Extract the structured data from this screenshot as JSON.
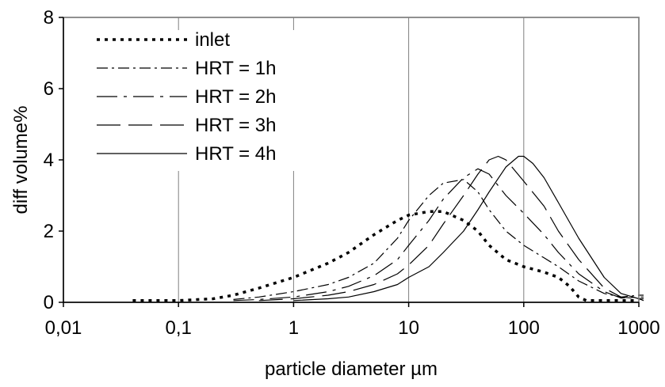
{
  "chart_data": {
    "type": "line",
    "xlabel": "particle diameter µm",
    "ylabel": "diff volume%",
    "xscale": "log",
    "xlim": [
      0.01,
      1000
    ],
    "ylim": [
      0,
      8
    ],
    "x_ticks": [
      0.01,
      0.1,
      1,
      10,
      100,
      1000
    ],
    "x_tick_labels": [
      "0,01",
      "0,1",
      "1",
      "10",
      "100",
      "1000"
    ],
    "y_ticks": [
      0,
      2,
      4,
      6,
      8
    ],
    "y_tick_labels": [
      "0",
      "2",
      "4",
      "6",
      "8"
    ],
    "grid": "vertical",
    "legend_position": "top-left",
    "series": [
      {
        "name": "inlet",
        "style": "dotted",
        "points": [
          [
            0.04,
            0.05
          ],
          [
            0.1,
            0.05
          ],
          [
            0.2,
            0.1
          ],
          [
            0.3,
            0.2
          ],
          [
            0.5,
            0.4
          ],
          [
            1,
            0.7
          ],
          [
            2,
            1.1
          ],
          [
            3,
            1.4
          ],
          [
            5,
            1.9
          ],
          [
            8,
            2.3
          ],
          [
            10,
            2.45
          ],
          [
            15,
            2.55
          ],
          [
            20,
            2.55
          ],
          [
            30,
            2.3
          ],
          [
            40,
            2.0
          ],
          [
            50,
            1.6
          ],
          [
            70,
            1.2
          ],
          [
            100,
            1.0
          ],
          [
            150,
            0.85
          ],
          [
            200,
            0.7
          ],
          [
            250,
            0.45
          ],
          [
            300,
            0.15
          ],
          [
            350,
            0.05
          ],
          [
            1000,
            0.05
          ]
        ]
      },
      {
        "name": "HRT = 1h",
        "style": "dash-dot",
        "points": [
          [
            0.3,
            0.08
          ],
          [
            0.5,
            0.15
          ],
          [
            1,
            0.3
          ],
          [
            2,
            0.5
          ],
          [
            3,
            0.7
          ],
          [
            5,
            1.1
          ],
          [
            8,
            1.8
          ],
          [
            10,
            2.3
          ],
          [
            15,
            3.0
          ],
          [
            20,
            3.35
          ],
          [
            30,
            3.45
          ],
          [
            40,
            3.1
          ],
          [
            50,
            2.6
          ],
          [
            70,
            2.0
          ],
          [
            100,
            1.6
          ],
          [
            150,
            1.25
          ],
          [
            200,
            1.0
          ],
          [
            300,
            0.6
          ],
          [
            500,
            0.25
          ],
          [
            700,
            0.15
          ],
          [
            1000,
            0.2
          ],
          [
            1100,
            0.2
          ]
        ]
      },
      {
        "name": "HRT = 2h",
        "style": "long-dash-dot",
        "points": [
          [
            0.3,
            0.05
          ],
          [
            0.5,
            0.08
          ],
          [
            1,
            0.15
          ],
          [
            2,
            0.3
          ],
          [
            3,
            0.45
          ],
          [
            5,
            0.75
          ],
          [
            8,
            1.2
          ],
          [
            10,
            1.6
          ],
          [
            15,
            2.3
          ],
          [
            20,
            2.9
          ],
          [
            30,
            3.5
          ],
          [
            40,
            3.75
          ],
          [
            50,
            3.6
          ],
          [
            70,
            3.0
          ],
          [
            100,
            2.5
          ],
          [
            150,
            1.9
          ],
          [
            200,
            1.4
          ],
          [
            300,
            0.8
          ],
          [
            500,
            0.3
          ],
          [
            700,
            0.12
          ],
          [
            1000,
            0.15
          ],
          [
            1100,
            0.15
          ]
        ]
      },
      {
        "name": "HRT = 3h",
        "style": "long-dash",
        "points": [
          [
            0.5,
            0.05
          ],
          [
            1,
            0.1
          ],
          [
            2,
            0.2
          ],
          [
            3,
            0.3
          ],
          [
            5,
            0.5
          ],
          [
            8,
            0.8
          ],
          [
            10,
            1.05
          ],
          [
            15,
            1.6
          ],
          [
            20,
            2.2
          ],
          [
            30,
            3.0
          ],
          [
            40,
            3.6
          ],
          [
            50,
            4.0
          ],
          [
            60,
            4.1
          ],
          [
            70,
            4.0
          ],
          [
            100,
            3.4
          ],
          [
            150,
            2.7
          ],
          [
            200,
            2.0
          ],
          [
            300,
            1.2
          ],
          [
            500,
            0.4
          ],
          [
            700,
            0.15
          ],
          [
            1000,
            0.1
          ],
          [
            1100,
            0.1
          ]
        ]
      },
      {
        "name": "HRT = 4h",
        "style": "solid",
        "points": [
          [
            1,
            0.05
          ],
          [
            2,
            0.1
          ],
          [
            3,
            0.15
          ],
          [
            5,
            0.3
          ],
          [
            8,
            0.5
          ],
          [
            10,
            0.7
          ],
          [
            15,
            1.0
          ],
          [
            20,
            1.4
          ],
          [
            30,
            2.0
          ],
          [
            40,
            2.6
          ],
          [
            50,
            3.1
          ],
          [
            70,
            3.8
          ],
          [
            90,
            4.1
          ],
          [
            100,
            4.1
          ],
          [
            120,
            3.9
          ],
          [
            150,
            3.5
          ],
          [
            200,
            2.8
          ],
          [
            300,
            1.8
          ],
          [
            500,
            0.7
          ],
          [
            700,
            0.25
          ],
          [
            1000,
            0.1
          ],
          [
            1100,
            0.05
          ]
        ]
      }
    ]
  }
}
